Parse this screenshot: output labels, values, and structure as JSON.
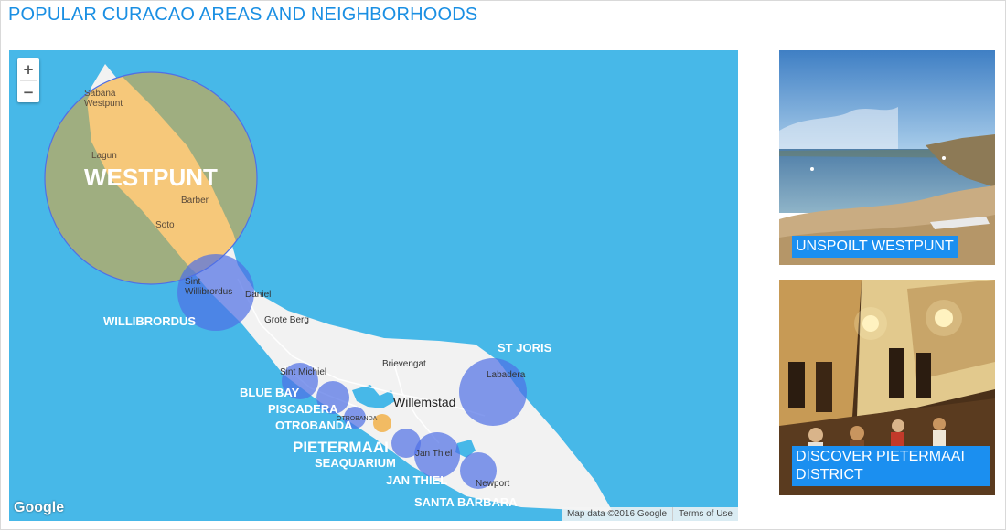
{
  "page": {
    "title": "POPULAR CURACAO AREAS AND NEIGHBORHOODS"
  },
  "map": {
    "zoom_in_label": "+",
    "zoom_out_label": "−",
    "logo": "Google",
    "attribution": "Map data ©2016 Google",
    "terms_label": "Terms of Use",
    "highlight_labels": {
      "westpunt": "WESTPUNT",
      "willibrordus": "WILLIBRORDUS",
      "st_joris": "ST JORIS",
      "blue_bay": "BLUE BAY",
      "piscadera": "PISCADERA",
      "otrobanda": "OTROBANDA",
      "pietermaai": "PIETERMAAI",
      "seaquarium": "SEAQUARIUM",
      "jan_thiel": "JAN THIEL",
      "santa_barbara": "SANTA BARBARA"
    },
    "place_labels": {
      "sabana_westpunt": "Sabana\nWestpunt",
      "lagun": "Lagun",
      "barber": "Barber",
      "soto": "Soto",
      "sint_willibrordus": "Sint\nWillibrordus",
      "daniel": "Daniel",
      "grote_berg": "Grote Berg",
      "brievengat": "Brievengat",
      "sint_michiel": "Sint Michiel",
      "labadera": "Labadera",
      "willemstad": "Willemstad",
      "otrobanda_small": "OTROBANDA",
      "jan_thiel_small": "Jan Thiel",
      "newport": "Newport"
    },
    "colors": {
      "sea": "#47b8e8",
      "land": "#f2f2f2",
      "westpunt_fill": "#f6c87a",
      "westpunt_circle": "#9fae80",
      "area_circle": "#4f6fe6",
      "label": "#ffffff"
    }
  },
  "cards": [
    {
      "caption": "UNSPOILT WESTPUNT",
      "image": "beach-photo"
    },
    {
      "caption": "DISCOVER PIETERMAAI\nDISTRICT",
      "image": "street-cafe-photo"
    }
  ]
}
